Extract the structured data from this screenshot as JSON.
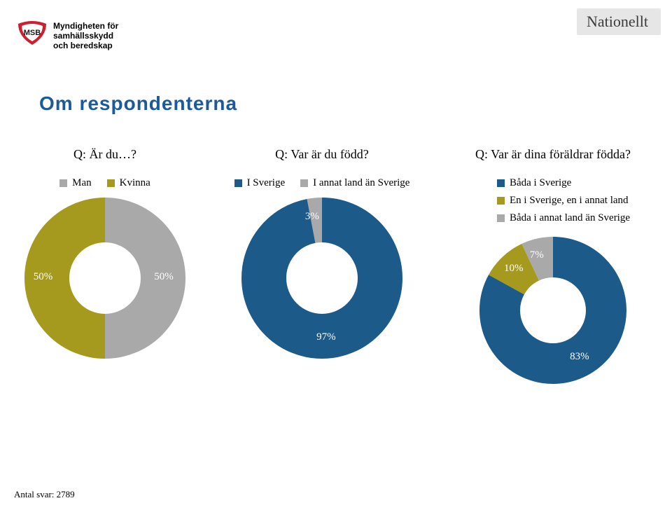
{
  "badge": {
    "text": "Nationellt",
    "bg": "#e6e6e6",
    "color": "#3b3b3b",
    "font_size": 22
  },
  "logo": {
    "org_lines": [
      "Myndigheten för",
      "samhällsskydd",
      "och beredskap"
    ],
    "acronym": "MSB",
    "mark_red": "#cc1f2f",
    "mark_dark": "#1a1a1a"
  },
  "title": {
    "text": "Om respondenterna",
    "color": "#1c5a9a",
    "font_size": 28
  },
  "charts": {
    "gender": {
      "question": "Q: Är du…?",
      "type": "donut",
      "diameter": 230,
      "thickness": 64,
      "legend_layout": "row",
      "series": [
        {
          "label": "Man",
          "value": 50,
          "color": "#a9a9a9",
          "show_pct": true
        },
        {
          "label": "Kvinna",
          "value": 50,
          "color": "#a59a1e",
          "show_pct": true
        }
      ],
      "label_font_size": 15,
      "label_color": "#ffffff"
    },
    "birth": {
      "question": "Q: Var är du född?",
      "type": "donut",
      "diameter": 230,
      "thickness": 64,
      "legend_layout": "row",
      "series": [
        {
          "label": "I Sverige",
          "value": 97,
          "color": "#1c5a8a",
          "show_pct": true
        },
        {
          "label": "I annat land än Sverige",
          "value": 3,
          "color": "#a9a9a9",
          "show_pct": true
        }
      ],
      "label_font_size": 15,
      "label_color": "#ffffff"
    },
    "parents": {
      "question": "Q: Var är dina föräldrar födda?",
      "type": "donut",
      "diameter": 210,
      "thickness": 58,
      "legend_layout": "column",
      "series": [
        {
          "label": "Båda i Sverige",
          "value": 83,
          "color": "#1c5a8a",
          "show_pct": true
        },
        {
          "label": "En i Sverige, en i annat land",
          "value": 10,
          "color": "#a59a1e",
          "show_pct": true
        },
        {
          "label": "Båda i annat land än Sverige",
          "value": 7,
          "color": "#a9a9a9",
          "show_pct": true
        }
      ],
      "label_font_size": 15,
      "label_color": "#ffffff"
    }
  },
  "footer": {
    "label": "Antal svar:",
    "value": "2789"
  },
  "background_color": "#ffffff"
}
